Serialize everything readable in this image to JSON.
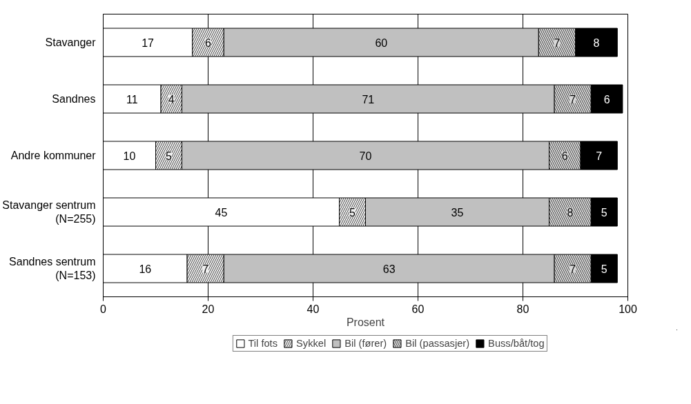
{
  "chart_data": {
    "type": "bar",
    "orientation": "horizontal",
    "stacked": true,
    "xlabel": "Prosent",
    "categories": [
      "Stavanger",
      "Sandnes",
      "Andre kommuner",
      "Stavanger sentrum\n(N=255)",
      "Sandnes sentrum\n(N=153)"
    ],
    "series": [
      {
        "name": "Til fots",
        "color": "#ffffff",
        "values": [
          17,
          11,
          10,
          45,
          16
        ]
      },
      {
        "name": "Sykkel",
        "color": "#f0f0f0",
        "values": [
          6,
          4,
          5,
          5,
          7
        ]
      },
      {
        "name": "Bil (fører)",
        "color": "#c0c0c0",
        "values": [
          60,
          71,
          70,
          35,
          63
        ]
      },
      {
        "name": "Bil (passasjer)",
        "color": "#d8d8d8",
        "values": [
          7,
          7,
          6,
          8,
          7
        ]
      },
      {
        "name": "Buss/båt/tog",
        "color": "#000000",
        "values": [
          8,
          6,
          7,
          5,
          5
        ]
      }
    ],
    "xlim": [
      0,
      100
    ],
    "xticks": [
      0,
      20,
      40,
      60,
      80,
      100
    ],
    "grid": "x",
    "legend": "bottom",
    "data_labels": true
  }
}
